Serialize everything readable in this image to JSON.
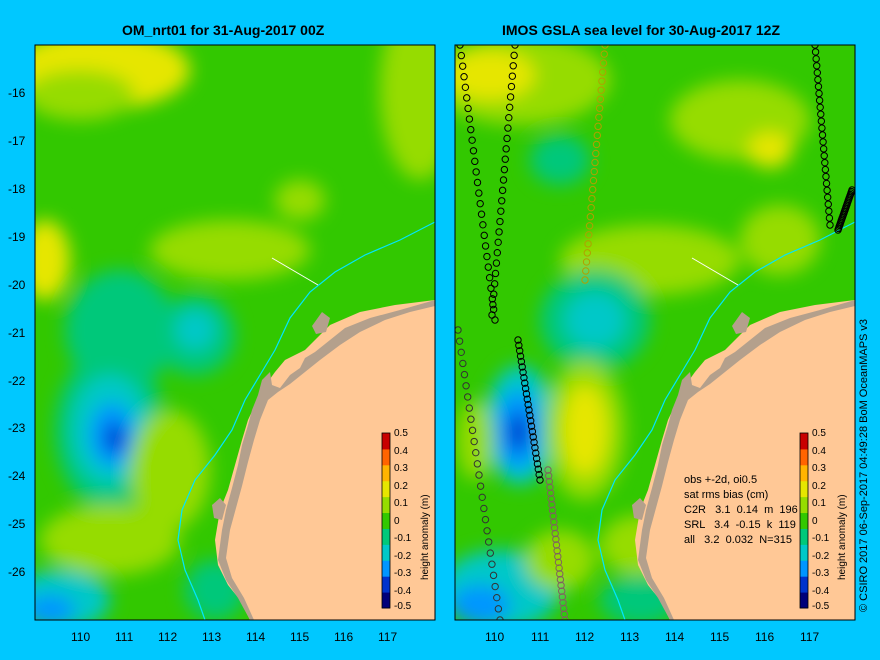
{
  "left_panel": {
    "title": "OM_nrt01 for 31-Aug-2017 00Z",
    "colorbar_label": "height anomaly (m)"
  },
  "right_panel": {
    "title": "IMOS GSLA sea level  for 30-Aug-2017 12Z",
    "colorbar_label": "height anomaly (m)",
    "stats": {
      "line1": "obs +-2d, oi0.5",
      "line2": "sat rms bias (cm)",
      "rows": [
        "C2R   3.1  0.14  m  196",
        "SRL   3.4  -0.15  k  119",
        "all   3.2  0.032  N=315"
      ]
    }
  },
  "credit": "© CSIRO 2017   06-Sep-2017 04:49:28 BoM OceanMAPS v3",
  "map_extent": {
    "lon_min": 109.1,
    "lon_max": 118.0,
    "lat_min": -27.0,
    "lat_max": -15.0
  },
  "x_ticks": [
    "110",
    "111",
    "112",
    "113",
    "114",
    "115",
    "116",
    "117"
  ],
  "y_ticks": [
    "-16",
    "-17",
    "-18",
    "-19",
    "-20",
    "-21",
    "-22",
    "-23",
    "-24",
    "-25",
    "-26"
  ],
  "colorbar_ticks": [
    "0.5",
    "0.4",
    "0.3",
    "0.2",
    "0.1",
    "0",
    "-0.1",
    "-0.2",
    "-0.3",
    "-0.4",
    "-0.5"
  ],
  "colors": {
    "background": "#00c8ff",
    "land": "#ffc896",
    "reef": "#b4a08c",
    "coastline_water": "#00e6ff",
    "colormap": [
      "#00007a",
      "#0033cc",
      "#0096ff",
      "#00c8c8",
      "#00c87a",
      "#32c800",
      "#96dc00",
      "#e6e600",
      "#ffb400",
      "#ff6400",
      "#c80000"
    ]
  }
}
